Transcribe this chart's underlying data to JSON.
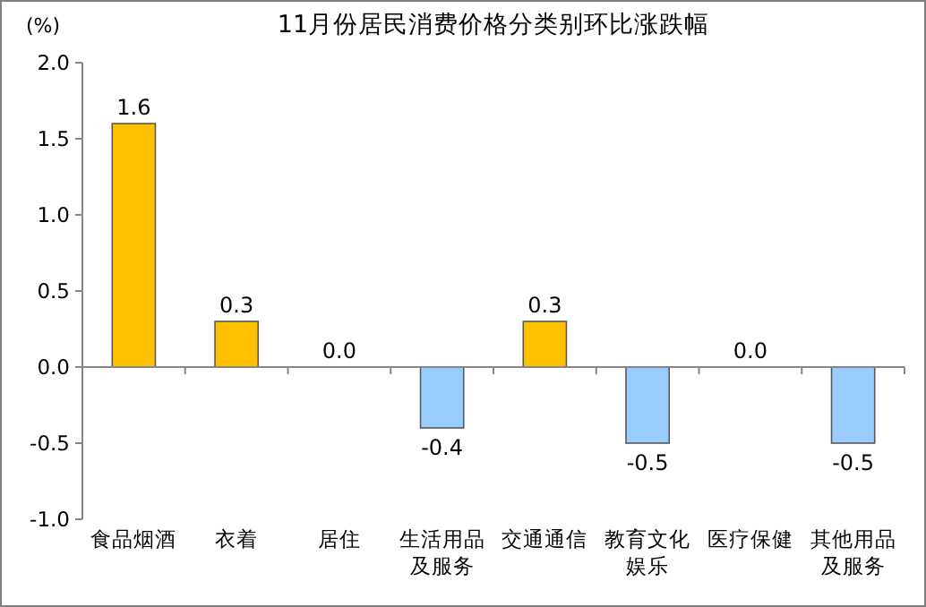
{
  "chart_data": {
    "type": "bar",
    "title": "11月份居民消费价格分类别环比涨跌幅",
    "ylabel": "(%)",
    "categories": [
      "食品烟酒",
      "衣着",
      "居住",
      "生活用品及服务",
      "交通通信",
      "教育文化娱乐",
      "医疗保健",
      "其他用品及服务"
    ],
    "values": [
      1.6,
      0.3,
      0,
      -0.4,
      0.3,
      -0.5,
      0,
      -0.5
    ],
    "colors": [
      "#ffc000",
      "#ffc000",
      "#ffc000",
      "#99ccff",
      "#ffc000",
      "#99ccff",
      "#ffc000",
      "#99ccff"
    ],
    "value_labels": [
      "1.6",
      "0.3",
      "0.0",
      "-0.4",
      "0.3",
      "-0.5",
      "0.0",
      "-0.5"
    ],
    "ylim": [
      -1,
      2
    ],
    "yticks": [
      {
        "value": -1,
        "label": "-1.0"
      },
      {
        "value": -0.5,
        "label": "-0.5"
      },
      {
        "value": 0,
        "label": "0.0"
      },
      {
        "value": 0.5,
        "label": "0.5"
      },
      {
        "value": 1,
        "label": "1.0"
      },
      {
        "value": 1.5,
        "label": "1.5"
      },
      {
        "value": 2,
        "label": "2.0"
      }
    ]
  }
}
